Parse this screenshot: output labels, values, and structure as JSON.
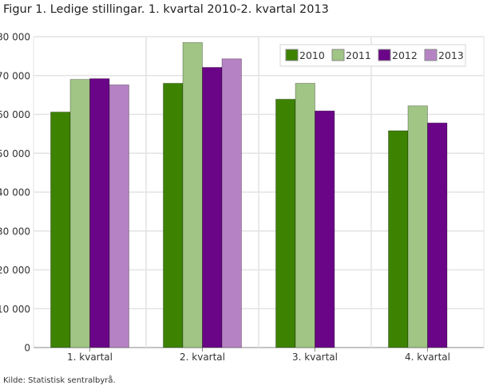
{
  "title": "Figur 1. Ledige stillingar. 1. kvartal 2010-2. kvartal 2013",
  "source": "Kilde: Statistisk sentralbyrå.",
  "chart_data": {
    "type": "bar",
    "title": "Figur 1. Ledige stillingar. 1. kvartal 2010-2. kvartal 2013",
    "categories": [
      "1. kvartal",
      "2. kvartal",
      "3. kvartal",
      "4. kvartal"
    ],
    "series": [
      {
        "name": "2010",
        "color": "#3d8200",
        "values": [
          60600,
          68000,
          63900,
          55800
        ]
      },
      {
        "name": "2011",
        "color": "#a0c584",
        "values": [
          69000,
          78500,
          68000,
          62200
        ]
      },
      {
        "name": "2012",
        "color": "#6a0587",
        "values": [
          69200,
          72100,
          60900,
          57800
        ]
      },
      {
        "name": "2013",
        "color": "#b583c4",
        "values": [
          67600,
          74300,
          null,
          null
        ]
      }
    ],
    "yticks": [
      "0",
      "10 000",
      "20 000",
      "30 000",
      "40 000",
      "50 000",
      "60 000",
      "70 000",
      "80 000"
    ],
    "ylim": [
      0,
      80000
    ],
    "xlabel": "",
    "ylabel": "",
    "grid": true,
    "legend": "top-right"
  }
}
